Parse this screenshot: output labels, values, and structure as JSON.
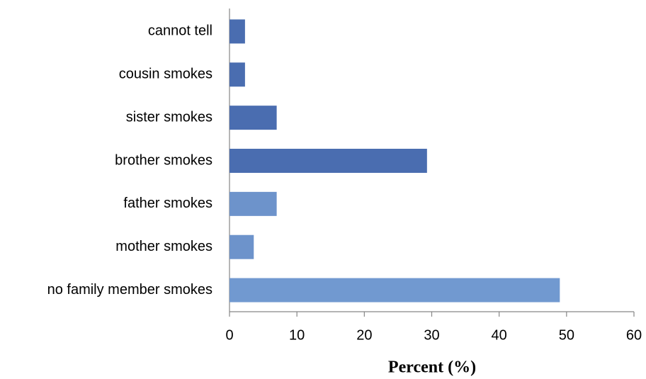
{
  "chart_data": {
    "type": "barh",
    "xlabel": "Percent (%)",
    "categories": [
      "cannot tell",
      "cousin smokes",
      "sister smokes",
      "brother smokes",
      "father smokes",
      "mother smokes",
      "no family member smokes"
    ],
    "values": [
      2.3,
      2.3,
      7,
      29.3,
      7,
      3.6,
      49
    ],
    "colors": [
      "#4a6db0",
      "#4a6db0",
      "#4a6db0",
      "#4a6db0",
      "#6d93cb",
      "#6d93cb",
      "#7199d0"
    ],
    "xlim": [
      0,
      60
    ],
    "xticks": [
      0,
      10,
      20,
      30,
      40,
      50,
      60
    ]
  }
}
